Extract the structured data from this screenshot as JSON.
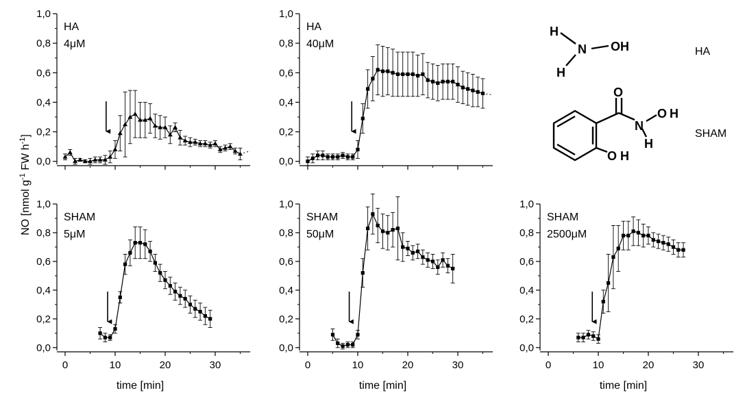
{
  "figure": {
    "ylabel": "NO [nmol g⁻¹ FW h⁻¹]",
    "xlabel": "time [min]",
    "colors": {
      "ink": "#000000"
    }
  },
  "chemistry": {
    "ha": {
      "name": "HA",
      "atoms": {
        "h_top": "H",
        "n": "N",
        "oh": "OH",
        "h_bottom": "H"
      }
    },
    "sham": {
      "name": "SHAM",
      "atoms": {
        "o_carbonyl": "O",
        "n": "N",
        "o": "O",
        "h_oh": "H",
        "h_nh": "H",
        "o_ring": "O",
        "h_ring": "H"
      }
    }
  },
  "chart_data": [
    {
      "type": "line",
      "label_lines": [
        "HA",
        "4μM"
      ],
      "x_ticks": [
        0,
        10,
        20,
        30
      ],
      "y_ticks": [
        0.0,
        0.2,
        0.4,
        0.6,
        0.8,
        1.0
      ],
      "y_tick_labels": [
        "0,0",
        "0,2",
        "0,4",
        "0,6",
        "0,8",
        "1,0"
      ],
      "show_x_axis": true,
      "xlim": [
        -1,
        37
      ],
      "ylim": [
        -0.02,
        1.0
      ],
      "arrow_x": 8.2,
      "marker": "triangle",
      "dotted_tail": [
        [
          35,
          0.05
        ],
        [
          37,
          0.07
        ]
      ],
      "series": [
        {
          "x": [
            0,
            1,
            2,
            3,
            4,
            5,
            6,
            7,
            8,
            9,
            10,
            11,
            12,
            13,
            14,
            15,
            16,
            17,
            18,
            19,
            20,
            21,
            22,
            23,
            24,
            25,
            26,
            27,
            28,
            29,
            30,
            31,
            32,
            33,
            34,
            35
          ],
          "y": [
            0.03,
            0.06,
            0.0,
            0.01,
            0.0,
            0.0,
            0.01,
            0.01,
            0.01,
            0.03,
            0.08,
            0.19,
            0.25,
            0.3,
            0.32,
            0.28,
            0.28,
            0.29,
            0.24,
            0.23,
            0.23,
            0.18,
            0.23,
            0.16,
            0.14,
            0.13,
            0.13,
            0.12,
            0.12,
            0.11,
            0.12,
            0.08,
            0.09,
            0.1,
            0.07,
            0.05
          ],
          "err": [
            0.02,
            0.02,
            0.02,
            0.01,
            0.01,
            0.02,
            0.02,
            0.02,
            0.03,
            0.04,
            0.06,
            0.12,
            0.22,
            0.18,
            0.16,
            0.12,
            0.12,
            0.1,
            0.08,
            0.08,
            0.07,
            0.06,
            0.03,
            0.05,
            0.03,
            0.03,
            0.02,
            0.02,
            0.02,
            0.02,
            0.02,
            0.02,
            0.02,
            0.02,
            0.02,
            0.04
          ]
        }
      ]
    },
    {
      "type": "line",
      "label_lines": [
        "HA",
        "40μM"
      ],
      "x_ticks": [
        0,
        10,
        20,
        30
      ],
      "y_ticks": [
        0.0,
        0.2,
        0.4,
        0.6,
        0.8,
        1.0
      ],
      "y_tick_labels": [
        "0,0",
        "0,2",
        "0,4",
        "0,6",
        "0,8",
        "1,0"
      ],
      "show_x_axis": true,
      "xlim": [
        -1,
        37
      ],
      "ylim": [
        -0.02,
        1.0
      ],
      "arrow_x": 8.8,
      "marker": "square",
      "dotted_tail": [
        [
          35,
          0.46
        ],
        [
          37,
          0.45
        ]
      ],
      "series": [
        {
          "x": [
            0,
            1,
            2,
            3,
            4,
            5,
            6,
            7,
            8,
            9,
            10,
            11,
            12,
            13,
            14,
            15,
            16,
            17,
            18,
            19,
            20,
            21,
            22,
            23,
            24,
            25,
            26,
            27,
            28,
            29,
            30,
            31,
            32,
            33,
            34,
            35
          ],
          "y": [
            0.0,
            0.02,
            0.04,
            0.04,
            0.03,
            0.03,
            0.03,
            0.04,
            0.03,
            0.03,
            0.08,
            0.29,
            0.49,
            0.56,
            0.62,
            0.61,
            0.61,
            0.6,
            0.59,
            0.59,
            0.59,
            0.59,
            0.58,
            0.59,
            0.55,
            0.54,
            0.53,
            0.54,
            0.54,
            0.54,
            0.52,
            0.5,
            0.49,
            0.48,
            0.47,
            0.46
          ],
          "err": [
            0.03,
            0.03,
            0.03,
            0.03,
            0.02,
            0.02,
            0.02,
            0.02,
            0.02,
            0.02,
            0.06,
            0.1,
            0.13,
            0.15,
            0.17,
            0.17,
            0.16,
            0.16,
            0.15,
            0.15,
            0.15,
            0.15,
            0.14,
            0.14,
            0.12,
            0.12,
            0.12,
            0.12,
            0.12,
            0.12,
            0.12,
            0.11,
            0.11,
            0.11,
            0.1,
            0.1
          ]
        }
      ]
    },
    {
      "type": "line",
      "label_lines": [
        "SHAM",
        "5μM"
      ],
      "x_ticks": [
        0,
        10,
        20,
        30
      ],
      "x_tick_labels": [
        "0",
        "10",
        "20",
        "30"
      ],
      "y_ticks": [
        0.0,
        0.2,
        0.4,
        0.6,
        0.8,
        1.0
      ],
      "y_tick_labels": [
        "0,0",
        "0,2",
        "0,4",
        "0,6",
        "0,8",
        "1,0"
      ],
      "show_x_axis": true,
      "xlabel": "time [min]",
      "xlim": [
        -1,
        37
      ],
      "ylim": [
        -0.02,
        1.0
      ],
      "arrow_x": 8.5,
      "marker": "square",
      "series": [
        {
          "x": [
            7,
            8,
            9,
            10,
            11,
            12,
            13,
            14,
            15,
            16,
            17,
            18,
            19,
            20,
            21,
            22,
            23,
            24,
            25,
            26,
            27,
            28,
            29
          ],
          "y": [
            0.1,
            0.07,
            0.07,
            0.13,
            0.35,
            0.58,
            0.66,
            0.73,
            0.73,
            0.72,
            0.67,
            0.59,
            0.52,
            0.47,
            0.43,
            0.39,
            0.36,
            0.34,
            0.3,
            0.27,
            0.25,
            0.22,
            0.2
          ],
          "err": [
            0.04,
            0.03,
            0.02,
            0.03,
            0.04,
            0.07,
            0.09,
            0.11,
            0.11,
            0.1,
            0.07,
            0.06,
            0.06,
            0.06,
            0.06,
            0.06,
            0.06,
            0.06,
            0.06,
            0.06,
            0.06,
            0.06,
            0.06
          ]
        }
      ]
    },
    {
      "type": "line",
      "label_lines": [
        "SHAM",
        "50μM"
      ],
      "x_ticks": [
        0,
        10,
        20,
        30
      ],
      "x_tick_labels": [
        "0",
        "10",
        "20",
        "30"
      ],
      "y_ticks": [
        0.0,
        0.2,
        0.4,
        0.6,
        0.8,
        1.0
      ],
      "y_tick_labels": [
        "0,0",
        "0,2",
        "0,4",
        "0,6",
        "0,8",
        "1,0"
      ],
      "show_x_axis": true,
      "xlabel": "time [min]",
      "xlim": [
        -1,
        37
      ],
      "ylim": [
        -0.02,
        1.0
      ],
      "arrow_x": 8.3,
      "marker": "square",
      "series": [
        {
          "x": [
            5,
            6,
            7,
            8,
            9,
            10,
            11,
            12,
            13,
            14,
            15,
            16,
            17,
            18,
            19,
            20,
            21,
            22,
            23,
            24,
            25,
            26,
            27,
            28,
            29
          ],
          "y": [
            0.09,
            0.03,
            0.01,
            0.02,
            0.02,
            0.09,
            0.52,
            0.83,
            0.93,
            0.85,
            0.81,
            0.8,
            0.82,
            0.83,
            0.7,
            0.69,
            0.66,
            0.67,
            0.63,
            0.61,
            0.6,
            0.56,
            0.61,
            0.57,
            0.55
          ],
          "err": [
            0.04,
            0.03,
            0.02,
            0.02,
            0.02,
            0.03,
            0.1,
            0.15,
            0.14,
            0.12,
            0.12,
            0.12,
            0.12,
            0.22,
            0.1,
            0.05,
            0.05,
            0.05,
            0.05,
            0.05,
            0.05,
            0.05,
            0.05,
            0.05,
            0.1
          ]
        }
      ]
    },
    {
      "type": "line",
      "label_lines": [
        "SHAM",
        "2500μM"
      ],
      "x_ticks": [
        0,
        10,
        20,
        30
      ],
      "x_tick_labels": [
        "0",
        "10",
        "20",
        "30"
      ],
      "y_ticks": [
        0.0,
        0.2,
        0.4,
        0.6,
        0.8,
        1.0
      ],
      "y_tick_labels": [
        "0,0",
        "0,2",
        "0,4",
        "0,6",
        "0,8",
        "1,0"
      ],
      "show_x_axis": true,
      "xlabel": "time [min]",
      "xlim": [
        -1,
        37
      ],
      "ylim": [
        -0.02,
        1.0
      ],
      "arrow_x": 8.8,
      "marker": "square",
      "series": [
        {
          "x": [
            6,
            7,
            8,
            9,
            10,
            11,
            12,
            13,
            14,
            15,
            16,
            17,
            18,
            19,
            20,
            21,
            22,
            23,
            24,
            25,
            26,
            27
          ],
          "y": [
            0.07,
            0.07,
            0.09,
            0.08,
            0.06,
            0.32,
            0.45,
            0.63,
            0.69,
            0.78,
            0.78,
            0.81,
            0.8,
            0.78,
            0.78,
            0.75,
            0.74,
            0.73,
            0.72,
            0.7,
            0.68,
            0.68
          ],
          "err": [
            0.03,
            0.03,
            0.03,
            0.03,
            0.03,
            0.08,
            0.2,
            0.22,
            0.16,
            0.1,
            0.1,
            0.1,
            0.09,
            0.08,
            0.06,
            0.05,
            0.05,
            0.05,
            0.05,
            0.05,
            0.05,
            0.05
          ]
        }
      ]
    }
  ]
}
